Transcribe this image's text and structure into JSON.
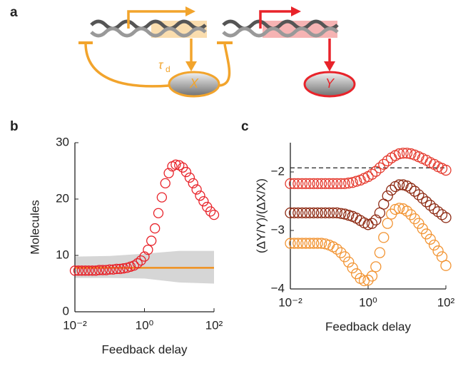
{
  "diagram": {
    "panel_label": "a",
    "delay_label": "τ",
    "delay_subscript": "d",
    "nodes": [
      {
        "label": "X"
      },
      {
        "label": "Y"
      }
    ]
  },
  "chart_data": [
    {
      "type": "scatter",
      "panel_label": "b",
      "xlabel": "Feedback delay",
      "ylabel": "Molecules",
      "log_x": true,
      "xlim": [
        0.01,
        100
      ],
      "ylim": [
        0,
        30
      ],
      "xticks": [
        {
          "value": 0.01,
          "label": "10⁻²"
        },
        {
          "value": 1,
          "label": "10⁰"
        },
        {
          "value": 100,
          "label": "10²"
        }
      ],
      "yticks": [
        0,
        10,
        20,
        30
      ],
      "x": [
        0.01,
        0.0126,
        0.0158,
        0.02,
        0.0251,
        0.0316,
        0.0398,
        0.0501,
        0.0631,
        0.0794,
        0.1,
        0.126,
        0.158,
        0.2,
        0.251,
        0.316,
        0.398,
        0.501,
        0.631,
        0.794,
        1,
        1.26,
        1.58,
        2,
        2.51,
        3.16,
        3.98,
        5.01,
        6.31,
        7.94,
        10,
        12.6,
        15.8,
        20,
        25.1,
        31.6,
        39.8,
        50.1,
        63.1,
        79.4,
        100
      ],
      "series": [
        {
          "color": "#e8232a",
          "values": [
            7.3,
            7.3,
            7.3,
            7.3,
            7.3,
            7.3,
            7.3,
            7.4,
            7.4,
            7.4,
            7.5,
            7.5,
            7.6,
            7.6,
            7.7,
            7.8,
            8.0,
            8.2,
            8.6,
            9.1,
            9.8,
            11.0,
            12.6,
            14.8,
            17.5,
            20.3,
            22.8,
            24.6,
            25.8,
            26.1,
            26.0,
            25.6,
            24.8,
            23.8,
            22.8,
            21.7,
            20.6,
            19.6,
            18.6,
            17.8,
            17.2
          ]
        }
      ],
      "line": {
        "color": "#f0901e",
        "x": [
          0.01,
          100
        ],
        "values": [
          7.8,
          7.8
        ]
      },
      "band": {
        "color": "#d6d6d6",
        "x": [
          0.01,
          0.1,
          1,
          10,
          100
        ],
        "lower": [
          6,
          6,
          5.9,
          5.2,
          5
        ],
        "upper": [
          9.8,
          9.9,
          10.3,
          10.8,
          10.8
        ]
      }
    },
    {
      "type": "scatter",
      "panel_label": "c",
      "xlabel": "Feedback delay",
      "ylabel": "(ΔY/Y)/(ΔX/X)",
      "log_x": true,
      "xlim": [
        0.01,
        100
      ],
      "ylim": [
        -4,
        -1.5
      ],
      "xticks": [
        {
          "value": 0.01,
          "label": "10⁻²"
        },
        {
          "value": 1,
          "label": "10⁰"
        },
        {
          "value": 100,
          "label": "10²"
        }
      ],
      "yticks": [
        {
          "value": -4,
          "label": "−4"
        },
        {
          "value": -3,
          "label": "−3"
        },
        {
          "value": -2,
          "label": "−2"
        }
      ],
      "reference_line": -1.93,
      "x": [
        0.01,
        0.0126,
        0.0158,
        0.02,
        0.0251,
        0.0316,
        0.0398,
        0.0501,
        0.0631,
        0.0794,
        0.1,
        0.126,
        0.158,
        0.2,
        0.251,
        0.316,
        0.398,
        0.501,
        0.631,
        0.794,
        1,
        1.26,
        1.58,
        2,
        2.51,
        3.16,
        3.98,
        5.01,
        6.31,
        7.94,
        10,
        12.6,
        15.8,
        20,
        25.1,
        31.6,
        39.8,
        50.1,
        63.1,
        79.4,
        100
      ],
      "series": [
        {
          "color": "#e53b2f",
          "values": [
            -2.2,
            -2.2,
            -2.2,
            -2.2,
            -2.2,
            -2.2,
            -2.2,
            -2.2,
            -2.2,
            -2.2,
            -2.2,
            -2.2,
            -2.2,
            -2.2,
            -2.2,
            -2.19,
            -2.18,
            -2.16,
            -2.14,
            -2.11,
            -2.08,
            -2.04,
            -1.99,
            -1.93,
            -1.87,
            -1.81,
            -1.76,
            -1.72,
            -1.69,
            -1.68,
            -1.68,
            -1.69,
            -1.71,
            -1.74,
            -1.77,
            -1.8,
            -1.84,
            -1.87,
            -1.91,
            -1.94,
            -1.97
          ]
        },
        {
          "color": "#8e2b14",
          "values": [
            -2.7,
            -2.7,
            -2.7,
            -2.7,
            -2.7,
            -2.7,
            -2.7,
            -2.7,
            -2.7,
            -2.7,
            -2.7,
            -2.7,
            -2.7,
            -2.71,
            -2.72,
            -2.74,
            -2.76,
            -2.79,
            -2.83,
            -2.87,
            -2.9,
            -2.88,
            -2.82,
            -2.7,
            -2.55,
            -2.41,
            -2.31,
            -2.25,
            -2.22,
            -2.22,
            -2.24,
            -2.28,
            -2.33,
            -2.39,
            -2.45,
            -2.51,
            -2.57,
            -2.63,
            -2.68,
            -2.73,
            -2.78
          ]
        },
        {
          "color": "#f29433",
          "values": [
            -3.22,
            -3.22,
            -3.22,
            -3.22,
            -3.22,
            -3.22,
            -3.22,
            -3.22,
            -3.22,
            -3.23,
            -3.25,
            -3.28,
            -3.32,
            -3.38,
            -3.45,
            -3.54,
            -3.64,
            -3.74,
            -3.82,
            -3.86,
            -3.85,
            -3.78,
            -3.62,
            -3.38,
            -3.12,
            -2.88,
            -2.72,
            -2.64,
            -2.62,
            -2.63,
            -2.67,
            -2.73,
            -2.8,
            -2.88,
            -2.97,
            -3.06,
            -3.15,
            -3.25,
            -3.35,
            -3.45,
            -3.6
          ]
        }
      ]
    }
  ]
}
